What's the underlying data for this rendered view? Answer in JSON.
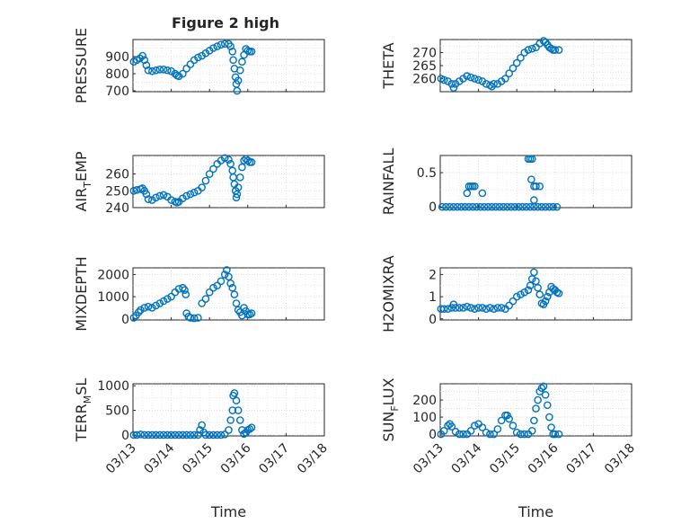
{
  "figure": {
    "title": "Figure 2 high"
  },
  "colors": {
    "marker": "#0072bd",
    "axis": "#262626",
    "grid": "#d9d9d9",
    "background": "#ffffff"
  },
  "chart_data": [
    {
      "type": "scatter",
      "ylabel": "PRESSURE",
      "yticks": [
        700,
        800,
        900
      ],
      "ylim": [
        695,
        1000
      ],
      "xlim": [
        0,
        5
      ],
      "grid": true,
      "title": "Figure 2 high",
      "points": [
        [
          0.02,
          870
        ],
        [
          0.1,
          880
        ],
        [
          0.18,
          890
        ],
        [
          0.25,
          905
        ],
        [
          0.3,
          880
        ],
        [
          0.35,
          850
        ],
        [
          0.4,
          820
        ],
        [
          0.5,
          815
        ],
        [
          0.6,
          820
        ],
        [
          0.7,
          825
        ],
        [
          0.8,
          825
        ],
        [
          0.9,
          820
        ],
        [
          1.0,
          815
        ],
        [
          1.1,
          800
        ],
        [
          1.15,
          790
        ],
        [
          1.2,
          785
        ],
        [
          1.3,
          800
        ],
        [
          1.4,
          830
        ],
        [
          1.5,
          855
        ],
        [
          1.6,
          880
        ],
        [
          1.7,
          895
        ],
        [
          1.8,
          905
        ],
        [
          1.9,
          920
        ],
        [
          2.0,
          935
        ],
        [
          2.1,
          950
        ],
        [
          2.2,
          960
        ],
        [
          2.3,
          970
        ],
        [
          2.4,
          975
        ],
        [
          2.5,
          975
        ],
        [
          2.55,
          960
        ],
        [
          2.6,
          930
        ],
        [
          2.62,
          880
        ],
        [
          2.65,
          830
        ],
        [
          2.68,
          780
        ],
        [
          2.7,
          740
        ],
        [
          2.72,
          700
        ],
        [
          2.75,
          760
        ],
        [
          2.8,
          820
        ],
        [
          2.85,
          870
        ],
        [
          2.9,
          910
        ],
        [
          2.95,
          945
        ],
        [
          3.0,
          935
        ],
        [
          3.05,
          930
        ],
        [
          3.1,
          930
        ]
      ]
    },
    {
      "type": "scatter",
      "ylabel": "THETA",
      "yticks": [
        260,
        265,
        270
      ],
      "ylim": [
        255,
        275
      ],
      "xlim": [
        0,
        5
      ],
      "grid": true,
      "points": [
        [
          0.02,
          260
        ],
        [
          0.1,
          259.5
        ],
        [
          0.2,
          259
        ],
        [
          0.3,
          258
        ],
        [
          0.35,
          256.5
        ],
        [
          0.4,
          258
        ],
        [
          0.5,
          259
        ],
        [
          0.6,
          260
        ],
        [
          0.7,
          261
        ],
        [
          0.8,
          260.5
        ],
        [
          0.9,
          260
        ],
        [
          1.0,
          259.5
        ],
        [
          1.1,
          259
        ],
        [
          1.2,
          258
        ],
        [
          1.3,
          257.5
        ],
        [
          1.35,
          257
        ],
        [
          1.4,
          258
        ],
        [
          1.5,
          258
        ],
        [
          1.6,
          259
        ],
        [
          1.7,
          260
        ],
        [
          1.8,
          262
        ],
        [
          1.9,
          264
        ],
        [
          2.0,
          266
        ],
        [
          2.1,
          268
        ],
        [
          2.2,
          270
        ],
        [
          2.3,
          271
        ],
        [
          2.4,
          271.5
        ],
        [
          2.5,
          272
        ],
        [
          2.6,
          273.5
        ],
        [
          2.7,
          274.5
        ],
        [
          2.75,
          274
        ],
        [
          2.8,
          273
        ],
        [
          2.85,
          272
        ],
        [
          2.9,
          271.5
        ],
        [
          2.95,
          271
        ],
        [
          3.0,
          271
        ],
        [
          3.1,
          271
        ]
      ]
    },
    {
      "type": "scatter",
      "ylabel": "AIR_TEMP",
      "yticks": [
        240,
        250,
        260
      ],
      "ylim": [
        240,
        271
      ],
      "xlim": [
        0,
        5
      ],
      "grid": true,
      "points": [
        [
          0.02,
          250
        ],
        [
          0.1,
          250.5
        ],
        [
          0.2,
          251
        ],
        [
          0.25,
          251.5
        ],
        [
          0.3,
          250
        ],
        [
          0.35,
          248
        ],
        [
          0.4,
          245
        ],
        [
          0.5,
          244.5
        ],
        [
          0.6,
          246
        ],
        [
          0.7,
          247
        ],
        [
          0.8,
          247.5
        ],
        [
          0.9,
          246.5
        ],
        [
          1.0,
          244.5
        ],
        [
          1.1,
          243.5
        ],
        [
          1.15,
          243
        ],
        [
          1.2,
          243.5
        ],
        [
          1.3,
          245.5
        ],
        [
          1.4,
          247
        ],
        [
          1.5,
          248
        ],
        [
          1.6,
          249
        ],
        [
          1.7,
          250
        ],
        [
          1.8,
          252
        ],
        [
          1.9,
          256
        ],
        [
          2.0,
          260
        ],
        [
          2.1,
          263
        ],
        [
          2.2,
          266
        ],
        [
          2.3,
          268
        ],
        [
          2.4,
          269.5
        ],
        [
          2.5,
          268.5
        ],
        [
          2.55,
          266
        ],
        [
          2.6,
          262
        ],
        [
          2.62,
          258
        ],
        [
          2.65,
          254
        ],
        [
          2.68,
          250
        ],
        [
          2.7,
          246
        ],
        [
          2.72,
          248
        ],
        [
          2.75,
          252
        ],
        [
          2.8,
          258
        ],
        [
          2.85,
          264
        ],
        [
          2.9,
          268
        ],
        [
          2.95,
          269
        ],
        [
          3.0,
          268
        ],
        [
          3.05,
          267
        ],
        [
          3.1,
          267
        ]
      ]
    },
    {
      "type": "scatter",
      "ylabel": "RAINFALL",
      "yticks": [
        0,
        0.5
      ],
      "ylim": [
        -0.01,
        0.75
      ],
      "xlim": [
        0,
        5
      ],
      "grid": true,
      "points": [
        [
          0.05,
          0
        ],
        [
          0.15,
          0
        ],
        [
          0.25,
          0
        ],
        [
          0.35,
          0
        ],
        [
          0.45,
          0
        ],
        [
          0.55,
          0
        ],
        [
          0.65,
          0
        ],
        [
          0.75,
          0
        ],
        [
          0.85,
          0
        ],
        [
          0.95,
          0
        ],
        [
          1.05,
          0
        ],
        [
          1.15,
          0
        ],
        [
          1.25,
          0
        ],
        [
          1.35,
          0
        ],
        [
          1.45,
          0
        ],
        [
          1.55,
          0
        ],
        [
          1.65,
          0
        ],
        [
          1.75,
          0
        ],
        [
          1.85,
          0
        ],
        [
          1.95,
          0
        ],
        [
          2.05,
          0
        ],
        [
          2.15,
          0
        ],
        [
          2.25,
          0
        ],
        [
          2.35,
          0
        ],
        [
          2.45,
          0
        ],
        [
          2.55,
          0
        ],
        [
          2.65,
          0
        ],
        [
          2.75,
          0
        ],
        [
          2.85,
          0
        ],
        [
          2.95,
          0
        ],
        [
          3.05,
          0
        ],
        [
          0.7,
          0.2
        ],
        [
          0.75,
          0.3
        ],
        [
          0.8,
          0.3
        ],
        [
          0.85,
          0.3
        ],
        [
          0.9,
          0.3
        ],
        [
          1.1,
          0.2
        ],
        [
          2.3,
          0.7
        ],
        [
          2.35,
          0.7
        ],
        [
          2.4,
          0.7
        ],
        [
          2.38,
          0.4
        ],
        [
          2.45,
          0.3
        ],
        [
          2.5,
          0.3
        ],
        [
          2.6,
          0.3
        ],
        [
          2.45,
          0.1
        ]
      ]
    },
    {
      "type": "scatter",
      "ylabel": "MIXDEPTH",
      "yticks": [
        0,
        1000,
        2000
      ],
      "ylim": [
        -50,
        2300
      ],
      "xlim": [
        0,
        5
      ],
      "grid": true,
      "points": [
        [
          0.02,
          50
        ],
        [
          0.08,
          150
        ],
        [
          0.15,
          300
        ],
        [
          0.2,
          400
        ],
        [
          0.3,
          500
        ],
        [
          0.4,
          550
        ],
        [
          0.5,
          500
        ],
        [
          0.6,
          600
        ],
        [
          0.7,
          700
        ],
        [
          0.8,
          800
        ],
        [
          0.9,
          900
        ],
        [
          1.0,
          1000
        ],
        [
          1.1,
          1200
        ],
        [
          1.2,
          1350
        ],
        [
          1.3,
          1400
        ],
        [
          1.35,
          1300
        ],
        [
          1.38,
          1100
        ],
        [
          1.4,
          250
        ],
        [
          1.45,
          100
        ],
        [
          1.5,
          50
        ],
        [
          1.6,
          30
        ],
        [
          1.7,
          50
        ],
        [
          1.8,
          700
        ],
        [
          1.9,
          900
        ],
        [
          2.0,
          1200
        ],
        [
          2.1,
          1400
        ],
        [
          2.2,
          1500
        ],
        [
          2.3,
          1700
        ],
        [
          2.4,
          2000
        ],
        [
          2.45,
          2200
        ],
        [
          2.5,
          1900
        ],
        [
          2.55,
          1600
        ],
        [
          2.6,
          1400
        ],
        [
          2.65,
          1100
        ],
        [
          2.7,
          700
        ],
        [
          2.75,
          400
        ],
        [
          2.8,
          300
        ],
        [
          2.85,
          150
        ],
        [
          2.9,
          500
        ],
        [
          2.95,
          350
        ],
        [
          3.0,
          200
        ],
        [
          3.05,
          200
        ],
        [
          3.1,
          250
        ]
      ]
    },
    {
      "type": "scatter",
      "ylabel": "H2OMIXRA",
      "yticks": [
        0,
        1,
        2
      ],
      "ylim": [
        -0.05,
        2.3
      ],
      "xlim": [
        0,
        5
      ],
      "grid": true,
      "points": [
        [
          0.02,
          0.45
        ],
        [
          0.1,
          0.45
        ],
        [
          0.2,
          0.45
        ],
        [
          0.3,
          0.5
        ],
        [
          0.35,
          0.65
        ],
        [
          0.4,
          0.5
        ],
        [
          0.5,
          0.5
        ],
        [
          0.6,
          0.5
        ],
        [
          0.7,
          0.55
        ],
        [
          0.8,
          0.5
        ],
        [
          0.9,
          0.45
        ],
        [
          1.0,
          0.5
        ],
        [
          1.1,
          0.5
        ],
        [
          1.2,
          0.45
        ],
        [
          1.3,
          0.5
        ],
        [
          1.4,
          0.45
        ],
        [
          1.5,
          0.5
        ],
        [
          1.6,
          0.5
        ],
        [
          1.7,
          0.45
        ],
        [
          1.8,
          0.6
        ],
        [
          1.9,
          0.8
        ],
        [
          2.0,
          1.0
        ],
        [
          2.1,
          1.1
        ],
        [
          2.2,
          1.2
        ],
        [
          2.3,
          1.3
        ],
        [
          2.35,
          1.5
        ],
        [
          2.4,
          1.8
        ],
        [
          2.45,
          2.1
        ],
        [
          2.5,
          1.7
        ],
        [
          2.55,
          1.4
        ],
        [
          2.6,
          1.1
        ],
        [
          2.65,
          0.7
        ],
        [
          2.7,
          0.65
        ],
        [
          2.75,
          0.8
        ],
        [
          2.8,
          1.0
        ],
        [
          2.85,
          1.2
        ],
        [
          2.9,
          1.45
        ],
        [
          2.95,
          1.35
        ],
        [
          3.0,
          1.3
        ],
        [
          3.05,
          1.2
        ],
        [
          3.1,
          1.15
        ]
      ]
    },
    {
      "type": "scatter",
      "ylabel": "TERR_MSL",
      "yticks": [
        0,
        500,
        1000
      ],
      "ylim": [
        -20,
        1040
      ],
      "xlim": [
        0,
        5
      ],
      "grid": true,
      "xticks": [
        "03/13",
        "03/14",
        "03/15",
        "03/16",
        "03/17",
        "03/18"
      ],
      "xlabel": "Time",
      "points": [
        [
          0.02,
          0
        ],
        [
          0.1,
          0
        ],
        [
          0.2,
          10
        ],
        [
          0.3,
          0
        ],
        [
          0.4,
          0
        ],
        [
          0.5,
          0
        ],
        [
          0.6,
          0
        ],
        [
          0.7,
          0
        ],
        [
          0.8,
          0
        ],
        [
          0.9,
          0
        ],
        [
          1.0,
          0
        ],
        [
          1.1,
          0
        ],
        [
          1.2,
          0
        ],
        [
          1.3,
          0
        ],
        [
          1.4,
          0
        ],
        [
          1.5,
          0
        ],
        [
          1.6,
          0
        ],
        [
          1.7,
          0
        ],
        [
          1.75,
          100
        ],
        [
          1.8,
          200
        ],
        [
          1.85,
          50
        ],
        [
          1.9,
          0
        ],
        [
          2.0,
          0
        ],
        [
          2.1,
          0
        ],
        [
          2.2,
          0
        ],
        [
          2.3,
          0
        ],
        [
          2.4,
          10
        ],
        [
          2.5,
          100
        ],
        [
          2.55,
          300
        ],
        [
          2.6,
          500
        ],
        [
          2.62,
          800
        ],
        [
          2.65,
          850
        ],
        [
          2.7,
          700
        ],
        [
          2.75,
          500
        ],
        [
          2.8,
          300
        ],
        [
          2.85,
          100
        ],
        [
          2.9,
          20
        ],
        [
          2.95,
          50
        ],
        [
          3.0,
          100
        ],
        [
          3.05,
          120
        ],
        [
          3.1,
          150
        ]
      ]
    },
    {
      "type": "scatter",
      "ylabel": "SUN_FLUX",
      "yticks": [
        0,
        100,
        200
      ],
      "ylim": [
        -10,
        295
      ],
      "xlim": [
        0,
        5
      ],
      "grid": true,
      "xticks": [
        "03/13",
        "03/14",
        "03/15",
        "03/16",
        "03/17",
        "03/18"
      ],
      "xlabel": "Time",
      "points": [
        [
          0.02,
          0
        ],
        [
          0.1,
          20
        ],
        [
          0.2,
          50
        ],
        [
          0.25,
          60
        ],
        [
          0.3,
          45
        ],
        [
          0.4,
          15
        ],
        [
          0.5,
          0
        ],
        [
          0.6,
          0
        ],
        [
          0.7,
          0
        ],
        [
          0.8,
          20
        ],
        [
          0.9,
          50
        ],
        [
          1.0,
          60
        ],
        [
          1.1,
          40
        ],
        [
          1.2,
          10
        ],
        [
          1.3,
          0
        ],
        [
          1.4,
          0
        ],
        [
          1.5,
          30
        ],
        [
          1.6,
          80
        ],
        [
          1.7,
          110
        ],
        [
          1.75,
          110
        ],
        [
          1.8,
          90
        ],
        [
          1.9,
          50
        ],
        [
          2.0,
          10
        ],
        [
          2.1,
          0
        ],
        [
          2.2,
          0
        ],
        [
          2.3,
          0
        ],
        [
          2.4,
          20
        ],
        [
          2.45,
          80
        ],
        [
          2.5,
          150
        ],
        [
          2.55,
          200
        ],
        [
          2.6,
          250
        ],
        [
          2.65,
          270
        ],
        [
          2.7,
          280
        ],
        [
          2.75,
          230
        ],
        [
          2.8,
          170
        ],
        [
          2.85,
          100
        ],
        [
          2.9,
          40
        ],
        [
          2.95,
          0
        ],
        [
          3.0,
          0
        ],
        [
          3.1,
          0
        ]
      ]
    }
  ]
}
